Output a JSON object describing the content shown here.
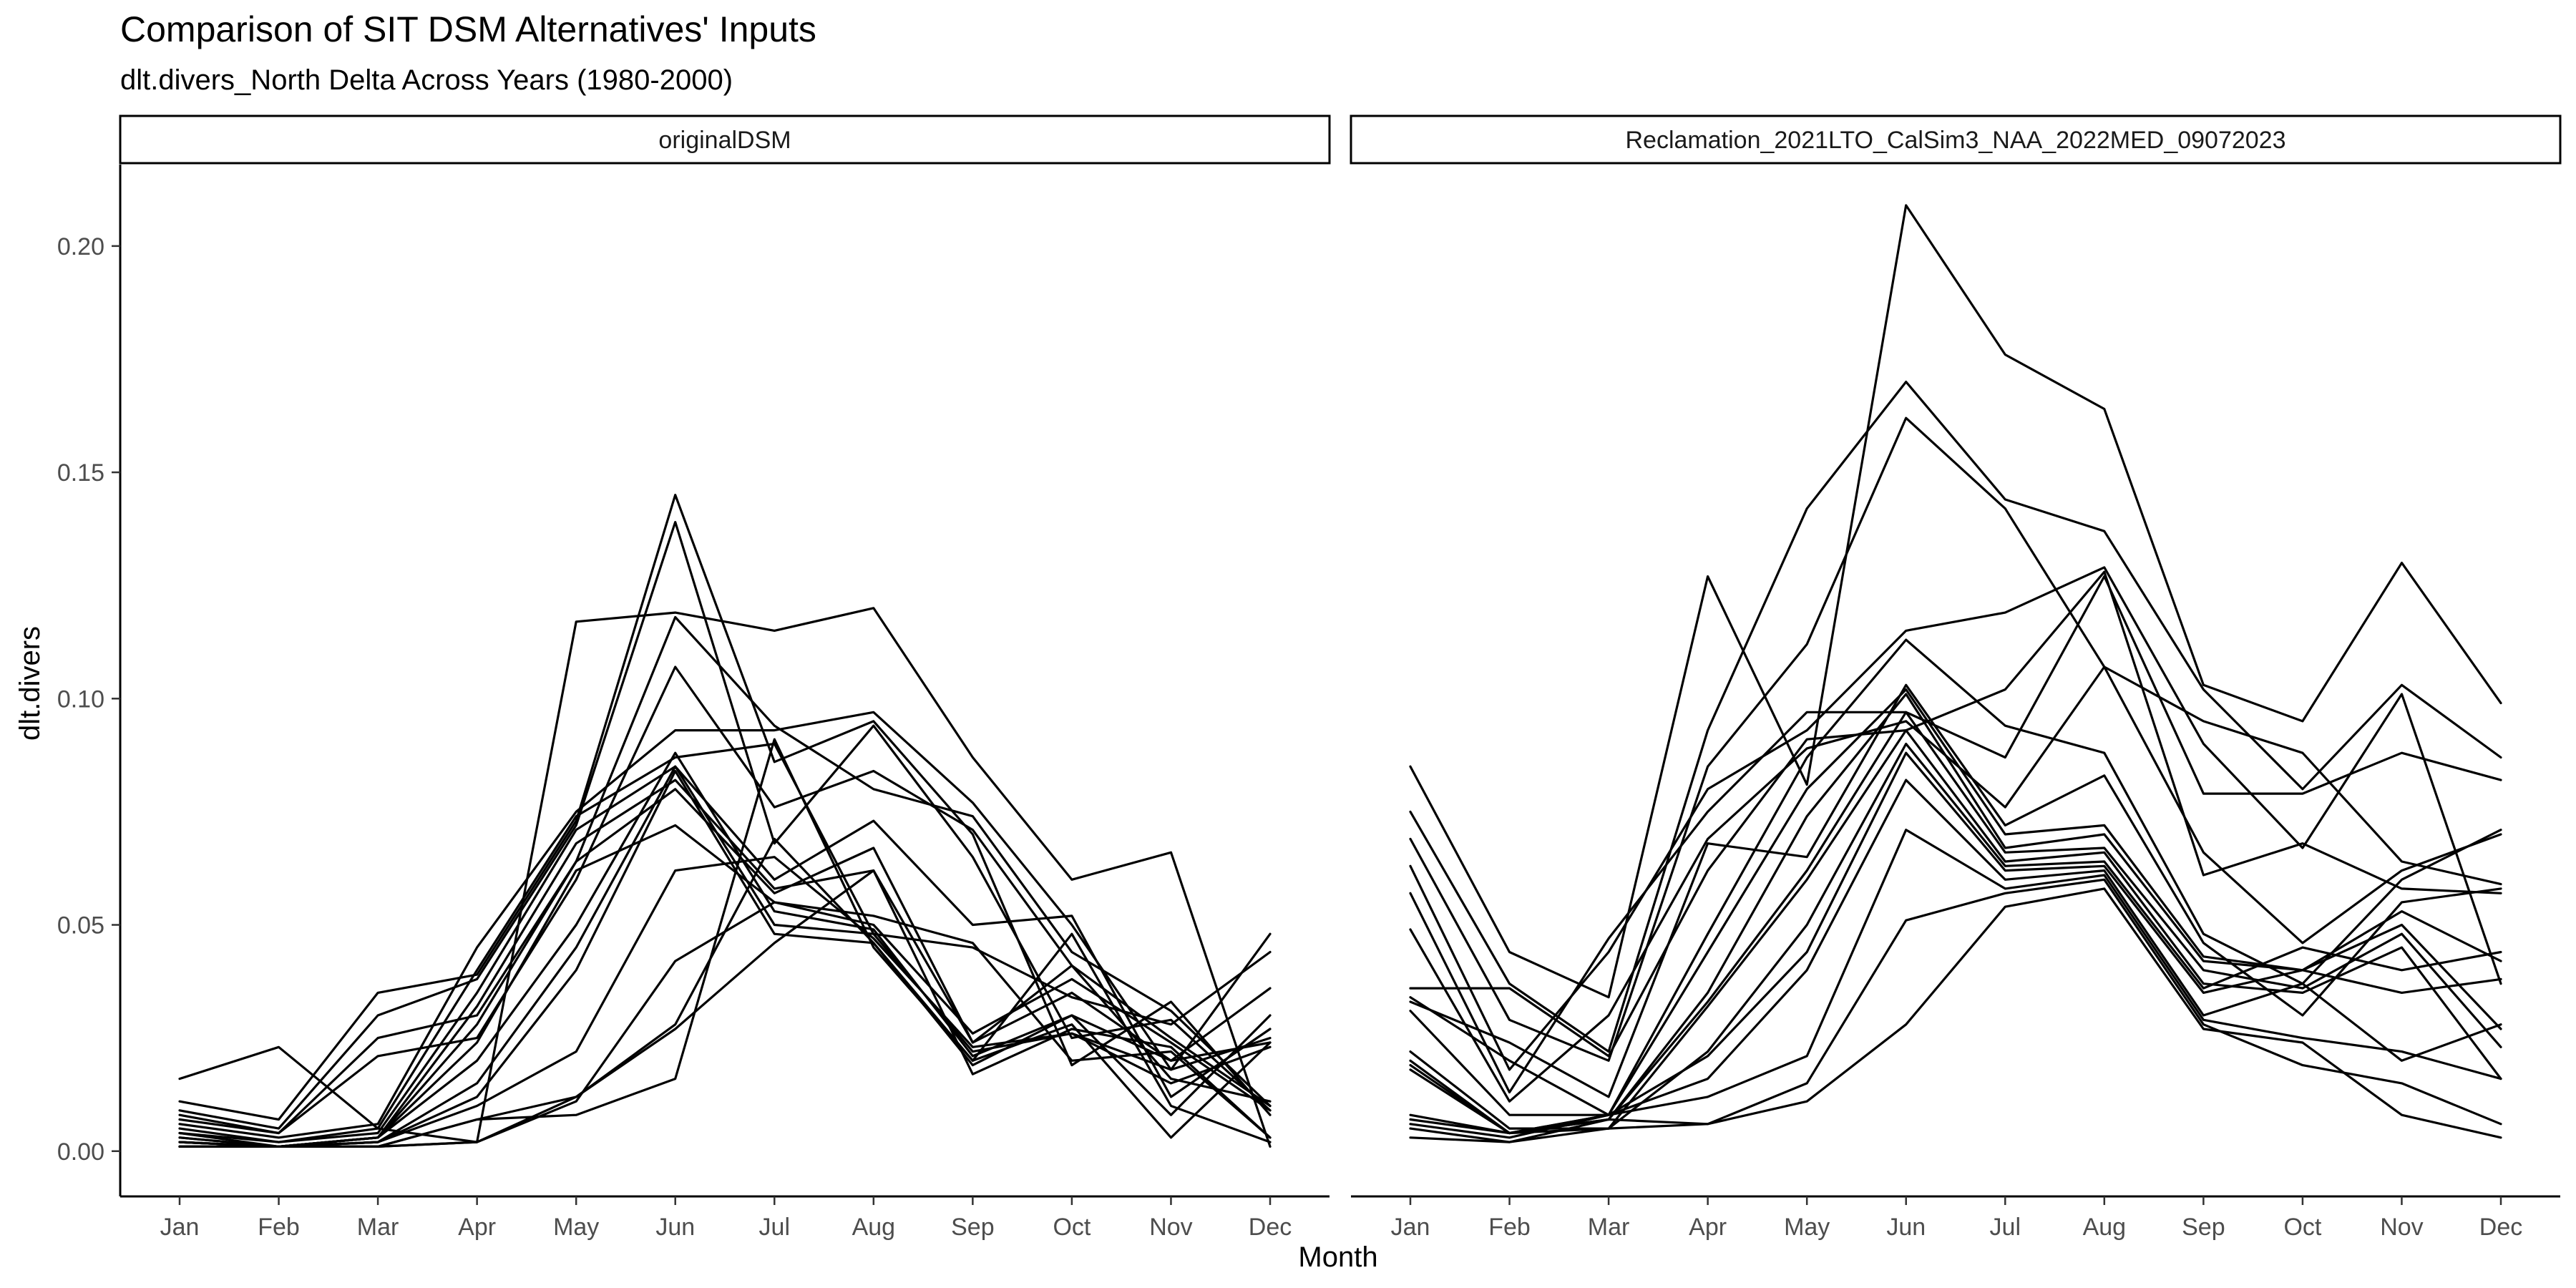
{
  "chart_data": {
    "type": "line",
    "title": "Comparison of SIT DSM Alternatives' Inputs",
    "subtitle": "dlt.divers_North Delta Across Years (1980-2000)",
    "xlabel": "Month",
    "ylabel": "dlt.divers",
    "x": [
      "Jan",
      "Feb",
      "Mar",
      "Apr",
      "May",
      "Jun",
      "Jul",
      "Aug",
      "Sep",
      "Oct",
      "Nov",
      "Dec"
    ],
    "y_ticks": [
      "0.00",
      "0.05",
      "0.10",
      "0.15",
      "0.20"
    ],
    "ylim": [
      -0.01,
      0.218
    ],
    "line_color": "#000000",
    "grid": false,
    "legend": "none",
    "panels": [
      {
        "name": "originalDSM",
        "series": [
          {
            "values": [
              0.016,
              0.023,
              0.005,
              0.002,
              0.117,
              0.119,
              0.115,
              0.12,
              0.087,
              0.06,
              0.066,
              0.001
            ]
          },
          {
            "values": [
              0.011,
              0.007,
              0.035,
              0.039,
              0.073,
              0.145,
              0.086,
              0.095,
              0.07,
              0.019,
              0.033,
              0.008
            ]
          },
          {
            "values": [
              0.009,
              0.005,
              0.03,
              0.038,
              0.072,
              0.139,
              0.068,
              0.094,
              0.065,
              0.025,
              0.029,
              0.009
            ]
          },
          {
            "values": [
              0.008,
              0.004,
              0.025,
              0.03,
              0.064,
              0.118,
              0.094,
              0.08,
              0.074,
              0.044,
              0.031,
              0.01
            ]
          },
          {
            "values": [
              0.007,
              0.004,
              0.021,
              0.025,
              0.06,
              0.107,
              0.076,
              0.084,
              0.071,
              0.041,
              0.025,
              0.01
            ]
          },
          {
            "values": [
              0.006,
              0.003,
              0.006,
              0.045,
              0.075,
              0.093,
              0.093,
              0.097,
              0.077,
              0.05,
              0.018,
              0.048
            ]
          },
          {
            "values": [
              0.005,
              0.002,
              0.005,
              0.04,
              0.074,
              0.087,
              0.09,
              0.048,
              0.045,
              0.034,
              0.028,
              0.044
            ]
          },
          {
            "values": [
              0.004,
              0.002,
              0.004,
              0.035,
              0.071,
              0.085,
              0.06,
              0.073,
              0.05,
              0.052,
              0.012,
              0.027
            ]
          },
          {
            "values": [
              0.004,
              0.001,
              0.003,
              0.032,
              0.068,
              0.082,
              0.058,
              0.062,
              0.024,
              0.041,
              0.016,
              0.011
            ]
          },
          {
            "values": [
              0.003,
              0.001,
              0.003,
              0.028,
              0.064,
              0.08,
              0.057,
              0.067,
              0.024,
              0.035,
              0.02,
              0.036
            ]
          },
          {
            "values": [
              0.003,
              0.001,
              0.003,
              0.024,
              0.062,
              0.072,
              0.055,
              0.05,
              0.026,
              0.038,
              0.024,
              0.009
            ]
          },
          {
            "values": [
              0.002,
              0.001,
              0.003,
              0.02,
              0.05,
              0.088,
              0.053,
              0.049,
              0.021,
              0.03,
              0.02,
              0.024
            ]
          },
          {
            "values": [
              0.002,
              0.001,
              0.002,
              0.015,
              0.045,
              0.085,
              0.05,
              0.048,
              0.022,
              0.026,
              0.018,
              0.025
            ]
          },
          {
            "values": [
              0.002,
              0.001,
              0.002,
              0.012,
              0.04,
              0.084,
              0.048,
              0.046,
              0.019,
              0.03,
              0.008,
              0.03
            ]
          },
          {
            "values": [
              0.002,
              0.001,
              0.002,
              0.01,
              0.022,
              0.062,
              0.065,
              0.047,
              0.023,
              0.026,
              0.015,
              0.023
            ]
          },
          {
            "values": [
              0.001,
              0.001,
              0.001,
              0.007,
              0.012,
              0.028,
              0.069,
              0.046,
              0.02,
              0.028,
              0.003,
              0.024
            ]
          },
          {
            "values": [
              0.001,
              0.001,
              0.001,
              0.007,
              0.008,
              0.016,
              0.091,
              0.045,
              0.02,
              0.048,
              0.01,
              0.002
            ]
          },
          {
            "values": [
              0.001,
              0.001,
              0.001,
              0.002,
              0.011,
              0.042,
              0.055,
              0.052,
              0.046,
              0.02,
              0.022,
              0.003
            ]
          },
          {
            "values": [
              0.001,
              0.001,
              0.001,
              0.002,
              0.012,
              0.027,
              0.046,
              0.062,
              0.017,
              0.027,
              0.023,
              0.003
            ]
          }
        ]
      },
      {
        "name": "Reclamation_2021LTO_CalSim3_NAA_2022MED_09072023",
        "series": [
          {
            "values": [
              0.085,
              0.044,
              0.034,
              0.127,
              0.081,
              0.209,
              0.176,
              0.164,
              0.103,
              0.095,
              0.13,
              0.099
            ]
          },
          {
            "values": [
              0.075,
              0.037,
              0.022,
              0.093,
              0.142,
              0.17,
              0.144,
              0.137,
              0.102,
              0.08,
              0.103,
              0.087
            ]
          },
          {
            "values": [
              0.069,
              0.029,
              0.02,
              0.085,
              0.112,
              0.162,
              0.142,
              0.107,
              0.095,
              0.088,
              0.064,
              0.059
            ]
          },
          {
            "values": [
              0.063,
              0.018,
              0.044,
              0.08,
              0.093,
              0.115,
              0.119,
              0.129,
              0.09,
              0.067,
              0.101,
              0.037
            ]
          },
          {
            "values": [
              0.057,
              0.013,
              0.047,
              0.075,
              0.097,
              0.097,
              0.087,
              0.127,
              0.079,
              0.079,
              0.088,
              0.082
            ]
          },
          {
            "values": [
              0.049,
              0.011,
              0.03,
              0.069,
              0.089,
              0.095,
              0.076,
              0.107,
              0.066,
              0.046,
              0.062,
              0.07
            ]
          },
          {
            "values": [
              0.036,
              0.036,
              0.021,
              0.062,
              0.091,
              0.093,
              0.102,
              0.128,
              0.061,
              0.068,
              0.058,
              0.057
            ]
          },
          {
            "values": [
              0.034,
              0.02,
              0.008,
              0.048,
              0.087,
              0.113,
              0.094,
              0.088,
              0.048,
              0.037,
              0.06,
              0.071
            ]
          },
          {
            "values": [
              0.033,
              0.024,
              0.012,
              0.068,
              0.065,
              0.103,
              0.072,
              0.083,
              0.046,
              0.03,
              0.055,
              0.058
            ]
          },
          {
            "values": [
              0.031,
              0.008,
              0.008,
              0.044,
              0.08,
              0.102,
              0.07,
              0.072,
              0.043,
              0.04,
              0.053,
              0.042
            ]
          },
          {
            "values": [
              0.02,
              0.004,
              0.007,
              0.035,
              0.074,
              0.101,
              0.067,
              0.07,
              0.042,
              0.04,
              0.05,
              0.027
            ]
          },
          {
            "values": [
              0.019,
              0.004,
              0.007,
              0.033,
              0.062,
              0.097,
              0.066,
              0.067,
              0.04,
              0.036,
              0.048,
              0.023
            ]
          },
          {
            "values": [
              0.018,
              0.004,
              0.005,
              0.032,
              0.06,
              0.093,
              0.064,
              0.066,
              0.037,
              0.035,
              0.045,
              0.016
            ]
          },
          {
            "values": [
              0.022,
              0.005,
              0.005,
              0.022,
              0.05,
              0.09,
              0.063,
              0.064,
              0.036,
              0.045,
              0.04,
              0.044
            ]
          },
          {
            "values": [
              0.008,
              0.004,
              0.008,
              0.021,
              0.044,
              0.088,
              0.062,
              0.063,
              0.035,
              0.04,
              0.035,
              0.038
            ]
          },
          {
            "values": [
              0.007,
              0.004,
              0.008,
              0.016,
              0.04,
              0.082,
              0.06,
              0.062,
              0.03,
              0.037,
              0.02,
              0.028
            ]
          },
          {
            "values": [
              0.006,
              0.003,
              0.008,
              0.012,
              0.021,
              0.071,
              0.058,
              0.061,
              0.029,
              0.025,
              0.022,
              0.016
            ]
          },
          {
            "values": [
              0.005,
              0.002,
              0.007,
              0.006,
              0.015,
              0.051,
              0.057,
              0.06,
              0.028,
              0.019,
              0.015,
              0.006
            ]
          },
          {
            "values": [
              0.003,
              0.002,
              0.005,
              0.006,
              0.011,
              0.028,
              0.054,
              0.058,
              0.027,
              0.024,
              0.008,
              0.003
            ]
          }
        ]
      }
    ]
  }
}
